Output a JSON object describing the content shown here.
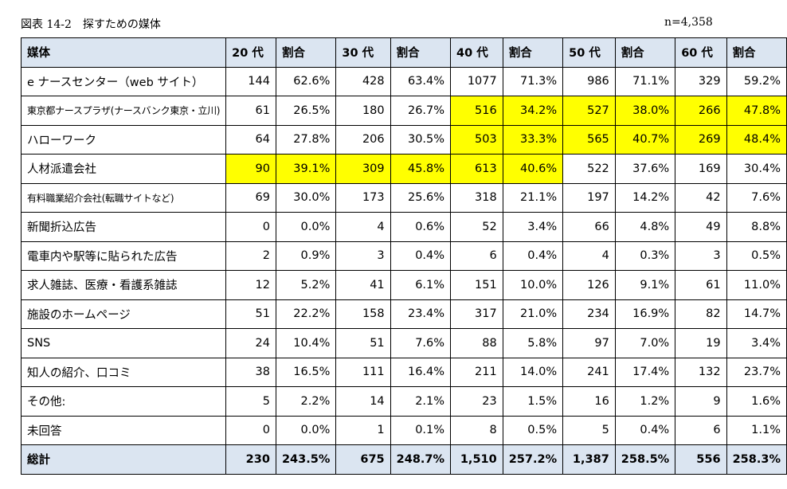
{
  "caption": "図表 14-2　探すための媒体",
  "n_label": "n=4,358",
  "header": [
    "媒体",
    "20 代",
    "割合",
    "30 代",
    "割合",
    "40 代",
    "割合",
    "50 代",
    "割合",
    "60 代",
    "割合"
  ],
  "rows": [
    {
      "label": "e ナースセンター（web サイト）",
      "cells": [
        "144",
        "62.6%",
        "428",
        "63.4%",
        "1077",
        "71.3%",
        "986",
        "71.1%",
        "329",
        "59.2%"
      ],
      "highlight": [
        false,
        false,
        false,
        false,
        false,
        false,
        false,
        false,
        false,
        false
      ]
    },
    {
      "label": "東京都ナースプラザ(ナースバンク東京・立川)",
      "small": true,
      "cells": [
        "61",
        "26.5%",
        "180",
        "26.7%",
        "516",
        "34.2%",
        "527",
        "38.0%",
        "266",
        "47.8%"
      ],
      "highlight": [
        false,
        false,
        false,
        false,
        true,
        true,
        true,
        true,
        true,
        true
      ]
    },
    {
      "label": "ハローワーク",
      "cells": [
        "64",
        "27.8%",
        "206",
        "30.5%",
        "503",
        "33.3%",
        "565",
        "40.7%",
        "269",
        "48.4%"
      ],
      "highlight": [
        false,
        false,
        false,
        false,
        true,
        true,
        true,
        true,
        true,
        true
      ]
    },
    {
      "label": "人材派遣会社",
      "cells": [
        "90",
        "39.1%",
        "309",
        "45.8%",
        "613",
        "40.6%",
        "522",
        "37.6%",
        "169",
        "30.4%"
      ],
      "highlight": [
        true,
        true,
        true,
        true,
        true,
        true,
        false,
        false,
        false,
        false
      ]
    },
    {
      "label": "有料職業紹介会社(転職サイトなど)",
      "small": true,
      "cells": [
        "69",
        "30.0%",
        "173",
        "25.6%",
        "318",
        "21.1%",
        "197",
        "14.2%",
        "42",
        "7.6%"
      ],
      "highlight": [
        false,
        false,
        false,
        false,
        false,
        false,
        false,
        false,
        false,
        false
      ]
    },
    {
      "label": "新聞折込広告",
      "cells": [
        "0",
        "0.0%",
        "4",
        "0.6%",
        "52",
        "3.4%",
        "66",
        "4.8%",
        "49",
        "8.8%"
      ],
      "highlight": [
        false,
        false,
        false,
        false,
        false,
        false,
        false,
        false,
        false,
        false
      ]
    },
    {
      "label": "電車内や駅等に貼られた広告",
      "cells": [
        "2",
        "0.9%",
        "3",
        "0.4%",
        "6",
        "0.4%",
        "4",
        "0.3%",
        "3",
        "0.5%"
      ],
      "highlight": [
        false,
        false,
        false,
        false,
        false,
        false,
        false,
        false,
        false,
        false
      ]
    },
    {
      "label": "求人雑誌、医療・看護系雑誌",
      "cells": [
        "12",
        "5.2%",
        "41",
        "6.1%",
        "151",
        "10.0%",
        "126",
        "9.1%",
        "61",
        "11.0%"
      ],
      "highlight": [
        false,
        false,
        false,
        false,
        false,
        false,
        false,
        false,
        false,
        false
      ]
    },
    {
      "label": "施設のホームページ",
      "cells": [
        "51",
        "22.2%",
        "158",
        "23.4%",
        "317",
        "21.0%",
        "234",
        "16.9%",
        "82",
        "14.7%"
      ],
      "highlight": [
        false,
        false,
        false,
        false,
        false,
        false,
        false,
        false,
        false,
        false
      ]
    },
    {
      "label": "SNS",
      "cells": [
        "24",
        "10.4%",
        "51",
        "7.6%",
        "88",
        "5.8%",
        "97",
        "7.0%",
        "19",
        "3.4%"
      ],
      "highlight": [
        false,
        false,
        false,
        false,
        false,
        false,
        false,
        false,
        false,
        false
      ]
    },
    {
      "label": "知人の紹介、口コミ",
      "cells": [
        "38",
        "16.5%",
        "111",
        "16.4%",
        "211",
        "14.0%",
        "241",
        "17.4%",
        "132",
        "23.7%"
      ],
      "highlight": [
        false,
        false,
        false,
        false,
        false,
        false,
        false,
        false,
        false,
        false
      ]
    },
    {
      "label": "その他:",
      "cells": [
        "5",
        "2.2%",
        "14",
        "2.1%",
        "23",
        "1.5%",
        "16",
        "1.2%",
        "9",
        "1.6%"
      ],
      "highlight": [
        false,
        false,
        false,
        false,
        false,
        false,
        false,
        false,
        false,
        false
      ]
    },
    {
      "label": "未回答",
      "cells": [
        "0",
        "0.0%",
        "1",
        "0.1%",
        "8",
        "0.5%",
        "5",
        "0.4%",
        "6",
        "1.1%"
      ],
      "highlight": [
        false,
        false,
        false,
        false,
        false,
        false,
        false,
        false,
        false,
        false
      ]
    }
  ],
  "total": {
    "label": "総計",
    "cells": [
      "230",
      "243.5%",
      "675",
      "248.7%",
      "1,510",
      "257.2%",
      "1,387",
      "258.5%",
      "556",
      "258.3%"
    ]
  },
  "colors": {
    "header_bg": "#dbe5f1",
    "highlight": "#ffff00"
  }
}
